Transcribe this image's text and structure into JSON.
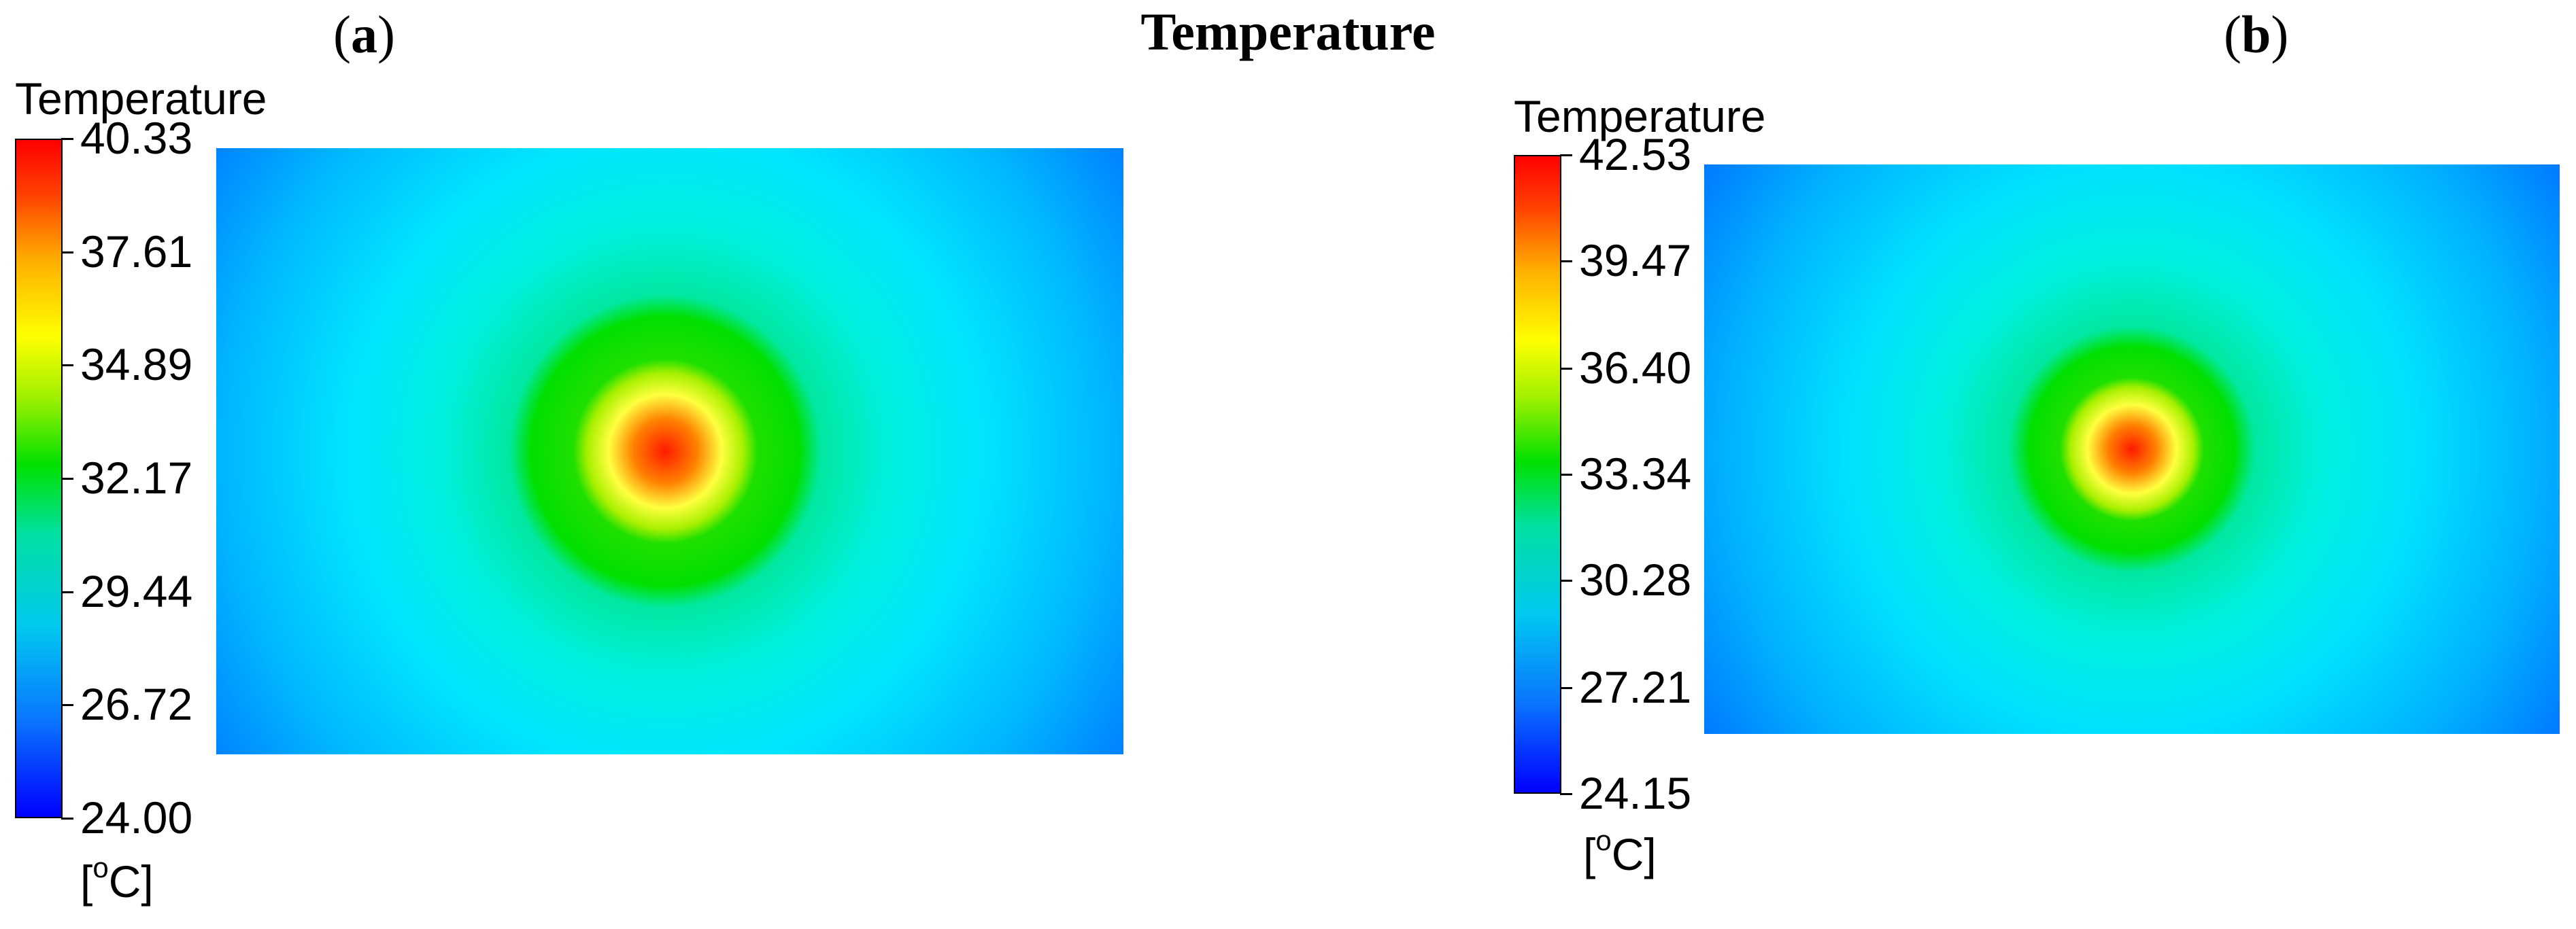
{
  "figure": {
    "title": "Temperature",
    "panel_a_label": "a",
    "panel_b_label": "b"
  },
  "colors": {
    "cold": "#0000ff",
    "cool": "#00e0ff",
    "mid": "#00e000",
    "warm": "#ffff00",
    "hot": "#ff0000"
  },
  "chart_data": [
    {
      "type": "heatmap",
      "panel": "a",
      "legend_title": "Temperature",
      "unit_prefix": "[",
      "unit_sup": "o",
      "unit_suffix": "C]",
      "range": [
        24.0,
        40.33
      ],
      "tick_labels": [
        "40.33",
        "37.61",
        "34.89",
        "32.17",
        "29.44",
        "26.72",
        "24.00"
      ],
      "ticks": [
        40.33,
        37.61,
        34.89,
        32.17,
        29.44,
        26.72,
        24.0
      ],
      "hotspot_center_frac": [
        0.49,
        0.5
      ],
      "field_edge_value": 24.0,
      "peak_value": 40.33
    },
    {
      "type": "heatmap",
      "panel": "b",
      "legend_title": "Temperature",
      "unit_prefix": "[",
      "unit_sup": "o",
      "unit_suffix": "C]",
      "range": [
        24.15,
        42.53
      ],
      "tick_labels": [
        "42.53",
        "39.47",
        "36.40",
        "33.34",
        "30.28",
        "27.21",
        "24.15"
      ],
      "ticks": [
        42.53,
        39.47,
        36.4,
        33.34,
        30.28,
        27.21,
        24.15
      ],
      "hotspot_center_frac": [
        0.5,
        0.5
      ],
      "field_edge_value": 24.15,
      "peak_value": 42.53
    }
  ]
}
